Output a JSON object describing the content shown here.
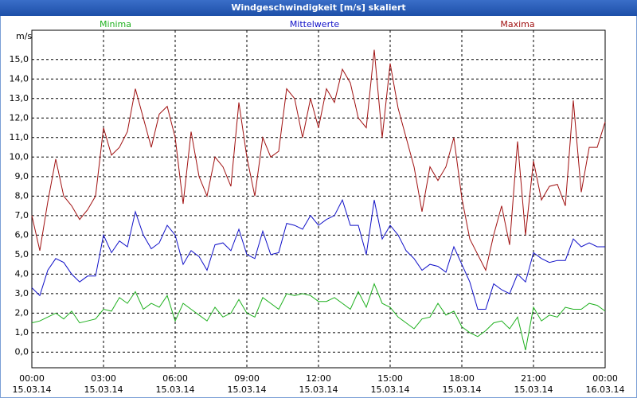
{
  "chart_data": {
    "type": "line",
    "title": "Windgeschwindigkeit [m/s] skaliert",
    "y_label": "m/s",
    "x": [
      0,
      20,
      40,
      60,
      80,
      100,
      120,
      140,
      160,
      180,
      200,
      220,
      240,
      260,
      280,
      300,
      320,
      340,
      360,
      380,
      400,
      420,
      440,
      460,
      480,
      500,
      520,
      540,
      560,
      580,
      600,
      620,
      640,
      660,
      680,
      700,
      720,
      740,
      760,
      780,
      800,
      820,
      840,
      860,
      880,
      900,
      920,
      940,
      960,
      980,
      1000,
      1020,
      1040,
      1060,
      1080,
      1100,
      1120,
      1140,
      1160,
      1180,
      1200,
      1220,
      1240,
      1260,
      1280,
      1300,
      1320,
      1340,
      1360,
      1380,
      1400,
      1420,
      1440
    ],
    "series": [
      {
        "name": "Minima",
        "color": "#1fb01f",
        "values": [
          1.5,
          1.6,
          1.8,
          2.0,
          1.7,
          2.1,
          1.5,
          1.6,
          1.7,
          2.2,
          2.1,
          2.8,
          2.5,
          3.1,
          2.2,
          2.5,
          2.3,
          2.9,
          1.6,
          2.5,
          2.2,
          1.9,
          1.6,
          2.3,
          1.8,
          2.0,
          2.7,
          2.0,
          1.8,
          2.8,
          2.5,
          2.2,
          3.0,
          2.9,
          3.0,
          2.9,
          2.6,
          2.6,
          2.8,
          2.5,
          2.2,
          3.1,
          2.3,
          3.5,
          2.5,
          2.3,
          1.8,
          1.5,
          1.2,
          1.7,
          1.8,
          2.5,
          1.9,
          2.1,
          1.3,
          1.0,
          0.8,
          1.1,
          1.5,
          1.6,
          1.2,
          1.8,
          0.1,
          2.3,
          1.6,
          1.9,
          1.8,
          2.3,
          2.2,
          2.2,
          2.5,
          2.4,
          2.1
        ]
      },
      {
        "name": "Mittelwerte",
        "color": "#1010c8",
        "values": [
          3.3,
          2.9,
          4.2,
          4.8,
          4.6,
          4.0,
          3.6,
          3.9,
          3.9,
          6.0,
          5.1,
          5.7,
          5.4,
          7.2,
          6.0,
          5.3,
          5.6,
          6.5,
          6.0,
          4.5,
          5.2,
          4.9,
          4.2,
          5.5,
          5.6,
          5.2,
          6.3,
          5.0,
          4.8,
          6.2,
          5.0,
          5.1,
          6.6,
          6.5,
          6.3,
          7.0,
          6.5,
          6.8,
          7.0,
          7.8,
          6.5,
          6.5,
          5.0,
          7.8,
          5.8,
          6.5,
          6.0,
          5.2,
          4.8,
          4.2,
          4.5,
          4.4,
          4.1,
          5.4,
          4.5,
          3.6,
          2.2,
          2.2,
          3.5,
          3.2,
          3.0,
          4.0,
          3.6,
          5.1,
          4.8,
          4.6,
          4.7,
          4.7,
          5.8,
          5.4,
          5.6,
          5.4,
          5.4
        ]
      },
      {
        "name": "Maxima",
        "color": "#a01010",
        "values": [
          7.0,
          5.2,
          7.7,
          9.9,
          8.0,
          7.5,
          6.8,
          7.3,
          8.0,
          11.5,
          10.1,
          10.5,
          11.3,
          13.5,
          12.0,
          10.5,
          12.2,
          12.6,
          11.0,
          7.6,
          11.3,
          9.0,
          8.0,
          10.0,
          9.5,
          8.5,
          12.8,
          10.0,
          8.0,
          11.0,
          10.0,
          10.3,
          13.5,
          13.0,
          11.0,
          13.0,
          11.5,
          13.5,
          12.8,
          14.5,
          13.8,
          12.0,
          11.5,
          15.5,
          11.0,
          14.8,
          12.5,
          11.0,
          9.5,
          7.2,
          9.5,
          8.8,
          9.5,
          11.0,
          7.9,
          5.8,
          5.0,
          4.2,
          6.0,
          7.5,
          5.5,
          10.8,
          6.0,
          9.8,
          7.8,
          8.5,
          8.6,
          7.5,
          12.9,
          8.2,
          10.5,
          10.5,
          11.8
        ]
      }
    ],
    "xlim": [
      0,
      1440
    ],
    "xticks": [
      {
        "value": 0,
        "label": "00:00"
      },
      {
        "value": 180,
        "label": "03:00"
      },
      {
        "value": 360,
        "label": "06:00"
      },
      {
        "value": 540,
        "label": "09:00"
      },
      {
        "value": 720,
        "label": "12:00"
      },
      {
        "value": 900,
        "label": "15:00"
      },
      {
        "value": 1080,
        "label": "18:00"
      },
      {
        "value": 1260,
        "label": "21:00"
      },
      {
        "value": 1440,
        "label": "00:00"
      }
    ],
    "xtick_dates": [
      "15.03.14",
      "15.03.14",
      "15.03.14",
      "15.03.14",
      "15.03.14",
      "15.03.14",
      "15.03.14",
      "15.03.14",
      "16.03.14"
    ],
    "ylim": [
      -0.8,
      16.5
    ],
    "yticks": [
      {
        "value": 0,
        "label": "0,0"
      },
      {
        "value": 1,
        "label": "1,0"
      },
      {
        "value": 2,
        "label": "2,0"
      },
      {
        "value": 3,
        "label": "3,0"
      },
      {
        "value": 4,
        "label": "4,0"
      },
      {
        "value": 5,
        "label": "5,0"
      },
      {
        "value": 6,
        "label": "6,0"
      },
      {
        "value": 7,
        "label": "7,0"
      },
      {
        "value": 8,
        "label": "8,0"
      },
      {
        "value": 9,
        "label": "9,0"
      },
      {
        "value": 10,
        "label": "10,0"
      },
      {
        "value": 11,
        "label": "11,0"
      },
      {
        "value": 12,
        "label": "12,0"
      },
      {
        "value": 13,
        "label": "13,0"
      },
      {
        "value": 14,
        "label": "14,0"
      },
      {
        "value": 15,
        "label": "15,0"
      }
    ],
    "grid": true
  }
}
